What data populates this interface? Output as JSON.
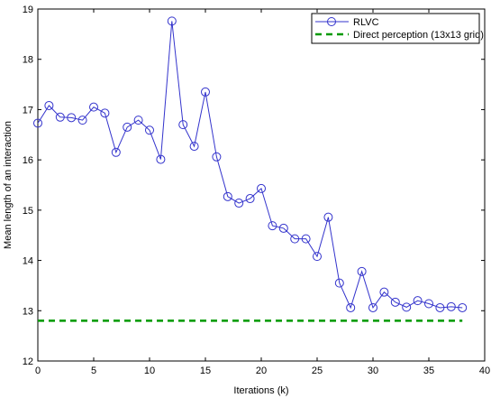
{
  "chart_data": {
    "type": "line",
    "xlabel": "Iterations (k)",
    "ylabel": "Mean length of an interaction",
    "xlim": [
      0,
      40
    ],
    "ylim": [
      12,
      19
    ],
    "xticks": [
      0,
      5,
      10,
      15,
      20,
      25,
      30,
      35,
      40
    ],
    "yticks": [
      12,
      13,
      14,
      15,
      16,
      17,
      18,
      19
    ],
    "grid": false,
    "legend_position": "top-right",
    "series": [
      {
        "name": "RLVC",
        "color": "#3333cc",
        "marker": "circle",
        "line_style": "solid",
        "x": [
          0,
          1,
          2,
          3,
          4,
          5,
          6,
          7,
          8,
          9,
          10,
          11,
          12,
          13,
          14,
          15,
          16,
          17,
          18,
          19,
          20,
          21,
          22,
          23,
          24,
          25,
          26,
          27,
          28,
          29,
          30,
          31,
          32,
          33,
          34,
          35,
          36,
          37,
          38
        ],
        "values": [
          16.73,
          17.08,
          16.85,
          16.84,
          16.79,
          17.05,
          16.93,
          16.15,
          16.65,
          16.79,
          16.59,
          16.01,
          18.76,
          16.7,
          16.27,
          17.35,
          16.06,
          15.27,
          15.14,
          15.23,
          15.43,
          14.69,
          14.64,
          14.43,
          14.43,
          14.08,
          14.86,
          13.55,
          13.06,
          13.78,
          13.06,
          13.37,
          13.17,
          13.07,
          13.2,
          13.14,
          13.06,
          13.08,
          13.06
        ]
      },
      {
        "name": "Direct perception (13x13 grid)",
        "color": "#009900",
        "line_style": "dashed",
        "x": [
          0,
          38
        ],
        "values": [
          12.8,
          12.8
        ]
      }
    ]
  }
}
